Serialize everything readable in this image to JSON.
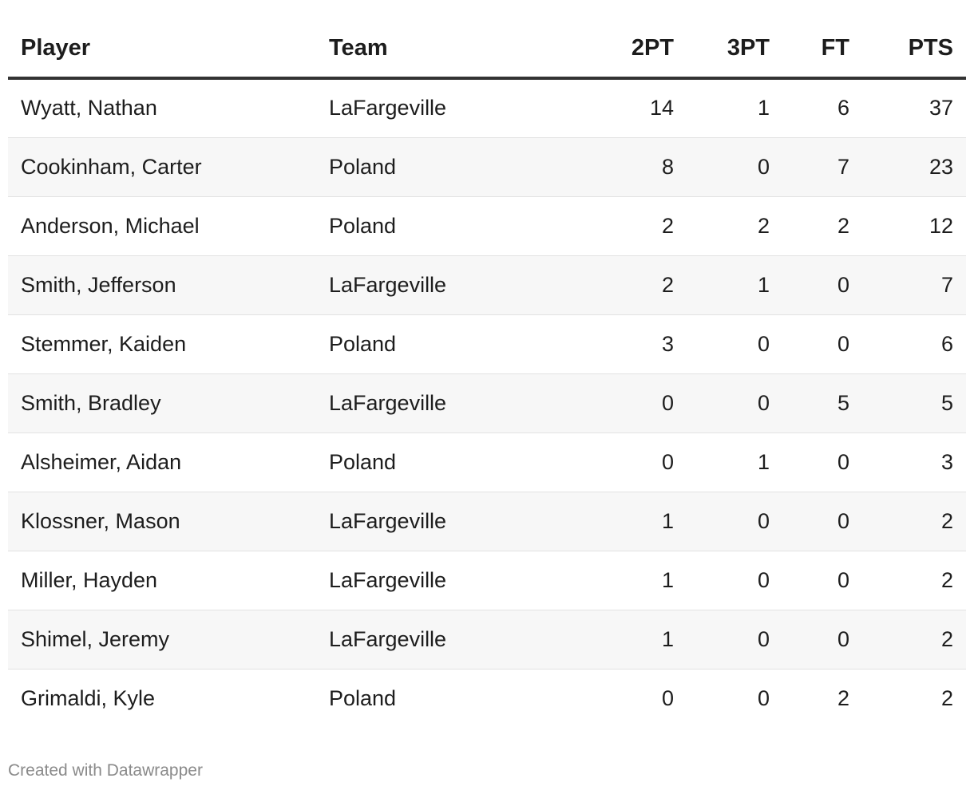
{
  "chart_data": {
    "type": "table",
    "columns": [
      "Player",
      "Team",
      "2PT",
      "3PT",
      "FT",
      "PTS"
    ],
    "rows": [
      [
        "Wyatt, Nathan",
        "LaFargeville",
        "14",
        "1",
        "6",
        "37"
      ],
      [
        "Cookinham, Carter",
        "Poland",
        "8",
        "0",
        "7",
        "23"
      ],
      [
        "Anderson, Michael",
        "Poland",
        "2",
        "2",
        "2",
        "12"
      ],
      [
        "Smith, Jefferson",
        "LaFargeville",
        "2",
        "1",
        "0",
        "7"
      ],
      [
        "Stemmer, Kaiden",
        "Poland",
        "3",
        "0",
        "0",
        "6"
      ],
      [
        "Smith, Bradley",
        "LaFargeville",
        "0",
        "0",
        "5",
        "5"
      ],
      [
        "Alsheimer, Aidan",
        "Poland",
        "0",
        "1",
        "0",
        "3"
      ],
      [
        "Klossner, Mason",
        "LaFargeville",
        "1",
        "0",
        "0",
        "2"
      ],
      [
        "Miller, Hayden",
        "LaFargeville",
        "1",
        "0",
        "0",
        "2"
      ],
      [
        "Shimel, Jeremy",
        "LaFargeville",
        "1",
        "0",
        "0",
        "2"
      ],
      [
        "Grimaldi, Kyle",
        "Poland",
        "0",
        "0",
        "2",
        "2"
      ]
    ]
  },
  "footer": {
    "credit": "Created with Datawrapper"
  }
}
